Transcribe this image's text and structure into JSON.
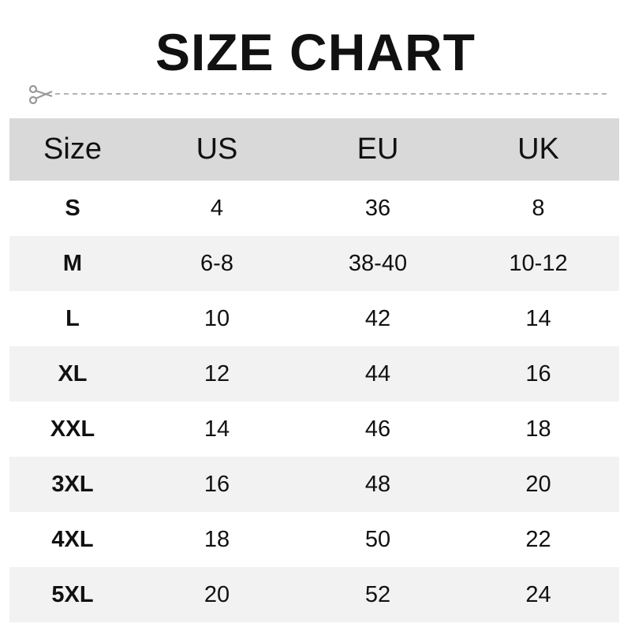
{
  "title": "SIZE CHART",
  "cut_line_icon": "scissors-icon",
  "colors": {
    "header_bg": "#d9d9d9",
    "alt_row_bg": "#f2f2f2",
    "cut_line": "#9a9a9a"
  },
  "table": {
    "headers": [
      "Size",
      "US",
      "EU",
      "UK"
    ],
    "rows": [
      [
        "S",
        "4",
        "36",
        "8"
      ],
      [
        "M",
        "6-8",
        "38-40",
        "10-12"
      ],
      [
        "L",
        "10",
        "42",
        "14"
      ],
      [
        "XL",
        "12",
        "44",
        "16"
      ],
      [
        "XXL",
        "14",
        "46",
        "18"
      ],
      [
        "3XL",
        "16",
        "48",
        "20"
      ],
      [
        "4XL",
        "18",
        "50",
        "22"
      ],
      [
        "5XL",
        "20",
        "52",
        "24"
      ]
    ]
  }
}
